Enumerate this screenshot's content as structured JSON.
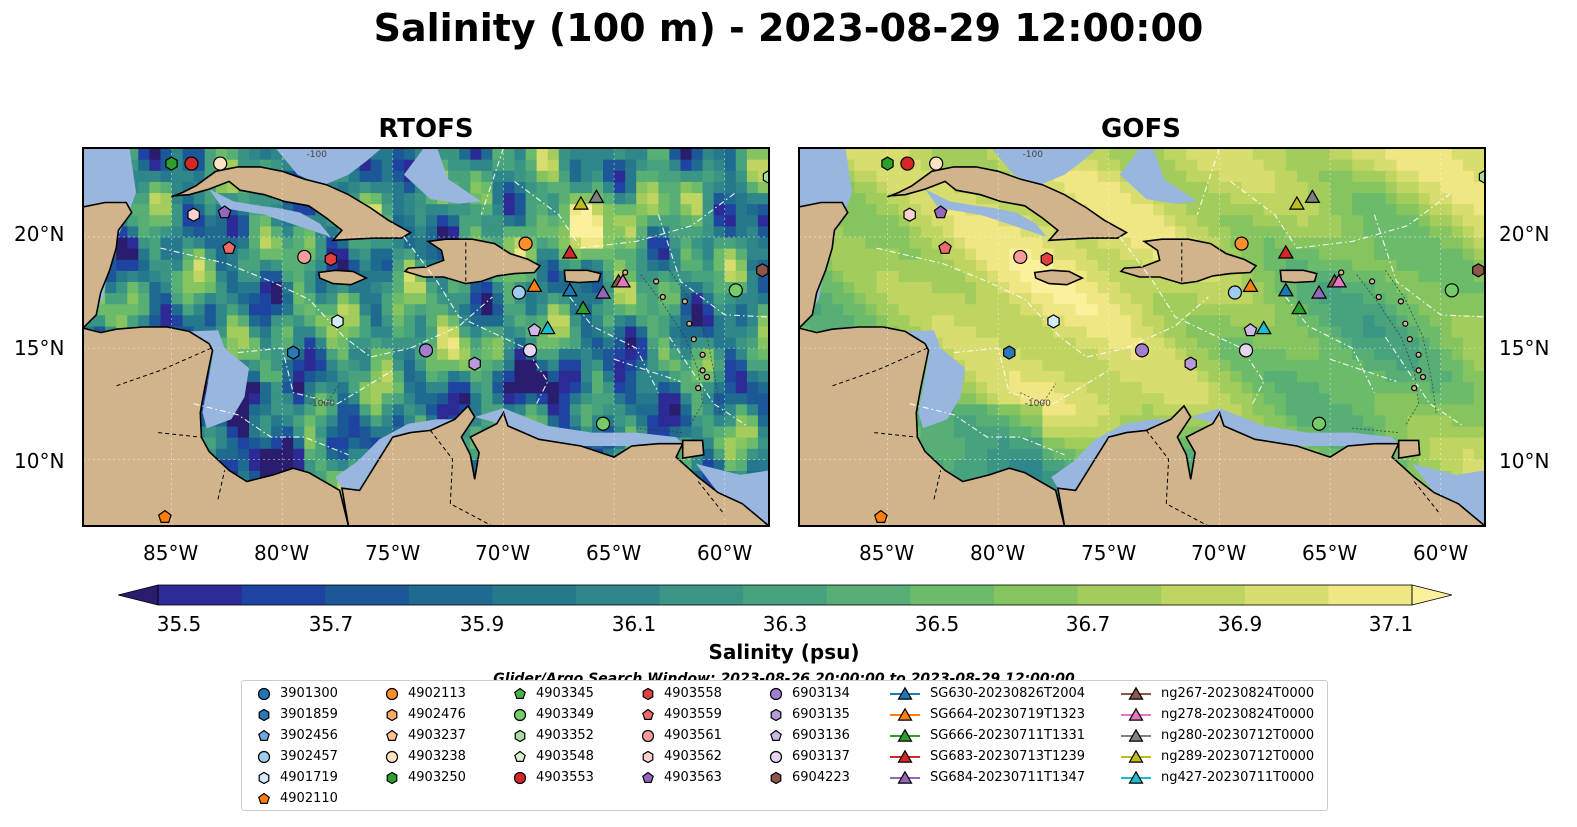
{
  "title": "Salinity (100 m) - 2023-08-29 12:00:00",
  "panels": [
    {
      "title": "RTOFS",
      "field": "rtofs"
    },
    {
      "title": "GOFS",
      "field": "gofs"
    }
  ],
  "map": {
    "projection_extent": {
      "lon": [
        -89,
        -58
      ],
      "lat": [
        7,
        24
      ]
    },
    "lat_ticks": [
      "10°N",
      "15°N",
      "20°N"
    ],
    "lon_ticks": [
      "85°W",
      "80°W",
      "75°W",
      "70°W",
      "65°W",
      "60°W"
    ],
    "contour_labels": [
      "-1000",
      "-100"
    ],
    "colors": {
      "land": "#d2b48c",
      "shallow": "#98b6de",
      "coast": "#000000",
      "gridlines": "#ffffff",
      "eez": "#ffffff",
      "borders": "#000000"
    }
  },
  "colorbar": {
    "label": "Salinity (psu)",
    "ticks": [
      "35.5",
      "35.7",
      "35.9",
      "36.1",
      "36.3",
      "36.5",
      "36.7",
      "36.9",
      "37.1"
    ],
    "range": [
      35.4,
      37.2
    ],
    "step": 0.1,
    "extend": "both",
    "colormap": "haline",
    "colors": [
      "#2a1d6e",
      "#2c2a95",
      "#1f43a0",
      "#1c5897",
      "#1e6b8f",
      "#26798d",
      "#2f878a",
      "#3b9585",
      "#48a27e",
      "#57af75",
      "#6bbb6a",
      "#85c45f",
      "#a2cc5c",
      "#bed561",
      "#d8dd6f",
      "#f0e684",
      "#fbf09c"
    ]
  },
  "search_window": "Glider/Argo Search Window: 2023-08-26 20:00:00 to 2023-08-29 12:00:00",
  "legend": {
    "columns": [
      [
        {
          "label": "3901300",
          "marker": "circle",
          "color": "#1f77b4"
        },
        {
          "label": "3901859",
          "marker": "hexagon",
          "color": "#2a78b6"
        },
        {
          "label": "3902456",
          "marker": "pentagon",
          "color": "#6fa8dc"
        },
        {
          "label": "3902457",
          "marker": "circle",
          "color": "#9fcbee"
        },
        {
          "label": "4901719",
          "marker": "hexagon",
          "color": "#d4ebfb"
        },
        {
          "label": "4902110",
          "marker": "pentagon",
          "color": "#ff7f0e"
        }
      ],
      [
        {
          "label": "4902113",
          "marker": "circle",
          "color": "#fd8f2b"
        },
        {
          "label": "4902476",
          "marker": "hexagon",
          "color": "#fdab66"
        },
        {
          "label": "4903237",
          "marker": "pentagon",
          "color": "#fcc08f"
        },
        {
          "label": "4903238",
          "marker": "circle",
          "color": "#fde3c6"
        },
        {
          "label": "4903250",
          "marker": "hexagon",
          "color": "#2ca02c"
        }
      ],
      [
        {
          "label": "4903345",
          "marker": "pentagon",
          "color": "#45b245"
        },
        {
          "label": "4903349",
          "marker": "circle",
          "color": "#76cc68"
        },
        {
          "label": "4903352",
          "marker": "hexagon",
          "color": "#a6dd9a"
        },
        {
          "label": "4903548",
          "marker": "pentagon",
          "color": "#d4f1cb"
        },
        {
          "label": "4903553",
          "marker": "circle",
          "color": "#d62728"
        }
      ],
      [
        {
          "label": "4903558",
          "marker": "hexagon",
          "color": "#e0413f"
        },
        {
          "label": "4903559",
          "marker": "pentagon",
          "color": "#ec6a68"
        },
        {
          "label": "4903561",
          "marker": "circle",
          "color": "#f59d9b"
        },
        {
          "label": "4903562",
          "marker": "hexagon",
          "color": "#fcd1cf"
        },
        {
          "label": "4903563",
          "marker": "pentagon",
          "color": "#9467bd"
        }
      ],
      [
        {
          "label": "6903134",
          "marker": "circle",
          "color": "#a17fce"
        },
        {
          "label": "6903135",
          "marker": "hexagon",
          "color": "#b89ad9"
        },
        {
          "label": "6903136",
          "marker": "pentagon",
          "color": "#cfb6e6"
        },
        {
          "label": "6903137",
          "marker": "circle",
          "color": "#e6d4f3"
        },
        {
          "label": "6904223",
          "marker": "hexagon",
          "color": "#8c564b"
        }
      ],
      [
        {
          "label": "SG630-20230826T2004",
          "marker": "triangle",
          "color": "#1f77b4"
        },
        {
          "label": "SG664-20230719T1323",
          "marker": "triangle",
          "color": "#ff7f0e"
        },
        {
          "label": "SG666-20230711T1331",
          "marker": "triangle",
          "color": "#2ca02c"
        },
        {
          "label": "SG683-20230713T1239",
          "marker": "triangle",
          "color": "#d62728"
        },
        {
          "label": "SG684-20230711T1347",
          "marker": "triangle",
          "color": "#9467bd"
        }
      ],
      [
        {
          "label": "ng267-20230824T0000",
          "marker": "triangle",
          "color": "#8c564b"
        },
        {
          "label": "ng278-20230824T0000",
          "marker": "triangle",
          "color": "#e377c2"
        },
        {
          "label": "ng280-20230712T0000",
          "marker": "triangle",
          "color": "#7f7f7f"
        },
        {
          "label": "ng289-20230712T0000",
          "marker": "triangle",
          "color": "#bcbd22"
        },
        {
          "label": "ng427-20230711T0000",
          "marker": "triangle",
          "color": "#17becf"
        }
      ]
    ]
  },
  "observations": [
    {
      "label": "4903250",
      "lon": -85.0,
      "lat": 23.3
    },
    {
      "label": "4903553",
      "lon": -84.1,
      "lat": 23.3
    },
    {
      "label": "4903238",
      "lon": -82.8,
      "lat": 23.3
    },
    {
      "label": "4903562",
      "lon": -84.0,
      "lat": 21.0
    },
    {
      "label": "4903563",
      "lon": -82.6,
      "lat": 21.1
    },
    {
      "label": "4903559",
      "lon": -82.4,
      "lat": 19.5
    },
    {
      "label": "4903561",
      "lon": -79.0,
      "lat": 19.1
    },
    {
      "label": "4903558",
      "lon": -77.8,
      "lat": 19.0
    },
    {
      "label": "4902113",
      "lon": -69.0,
      "lat": 19.7
    },
    {
      "label": "SG683-20230713T1239",
      "lon": -67.0,
      "lat": 19.3
    },
    {
      "label": "ng289-20230712T0000",
      "lon": -66.5,
      "lat": 21.5
    },
    {
      "label": "ng280-20230712T0000",
      "lon": -65.8,
      "lat": 21.8
    },
    {
      "label": "6904223",
      "lon": -58.3,
      "lat": 18.5
    },
    {
      "label": "4903352",
      "lon": -58.0,
      "lat": 22.7
    },
    {
      "label": "SG664-20230719T1323",
      "lon": -68.6,
      "lat": 17.8
    },
    {
      "label": "3902457",
      "lon": -69.3,
      "lat": 17.5
    },
    {
      "label": "SG630-20230826T2004",
      "lon": -67.0,
      "lat": 17.6
    },
    {
      "label": "SG684-20230711T1347",
      "lon": -65.5,
      "lat": 17.5
    },
    {
      "label": "ng267-20230824T0000",
      "lon": -64.8,
      "lat": 18.0
    },
    {
      "label": "ng278-20230824T0000",
      "lon": -64.6,
      "lat": 18.0
    },
    {
      "label": "SG666-20230711T1331",
      "lon": -66.4,
      "lat": 16.8
    },
    {
      "label": "4903349",
      "lon": -59.5,
      "lat": 17.6
    },
    {
      "label": "4901719",
      "lon": -77.5,
      "lat": 16.2
    },
    {
      "label": "6903136",
      "lon": -68.6,
      "lat": 15.8
    },
    {
      "label": "ng427-20230711T0000",
      "lon": -68.0,
      "lat": 15.9
    },
    {
      "label": "3901859",
      "lon": -79.5,
      "lat": 14.8
    },
    {
      "label": "6903134",
      "lon": -73.5,
      "lat": 14.9
    },
    {
      "label": "6903135",
      "lon": -71.3,
      "lat": 14.3
    },
    {
      "label": "6903137",
      "lon": -68.8,
      "lat": 14.9
    },
    {
      "label": "4903349",
      "lon": -65.5,
      "lat": 11.6
    },
    {
      "label": "4902110",
      "lon": -85.3,
      "lat": 7.4
    }
  ]
}
